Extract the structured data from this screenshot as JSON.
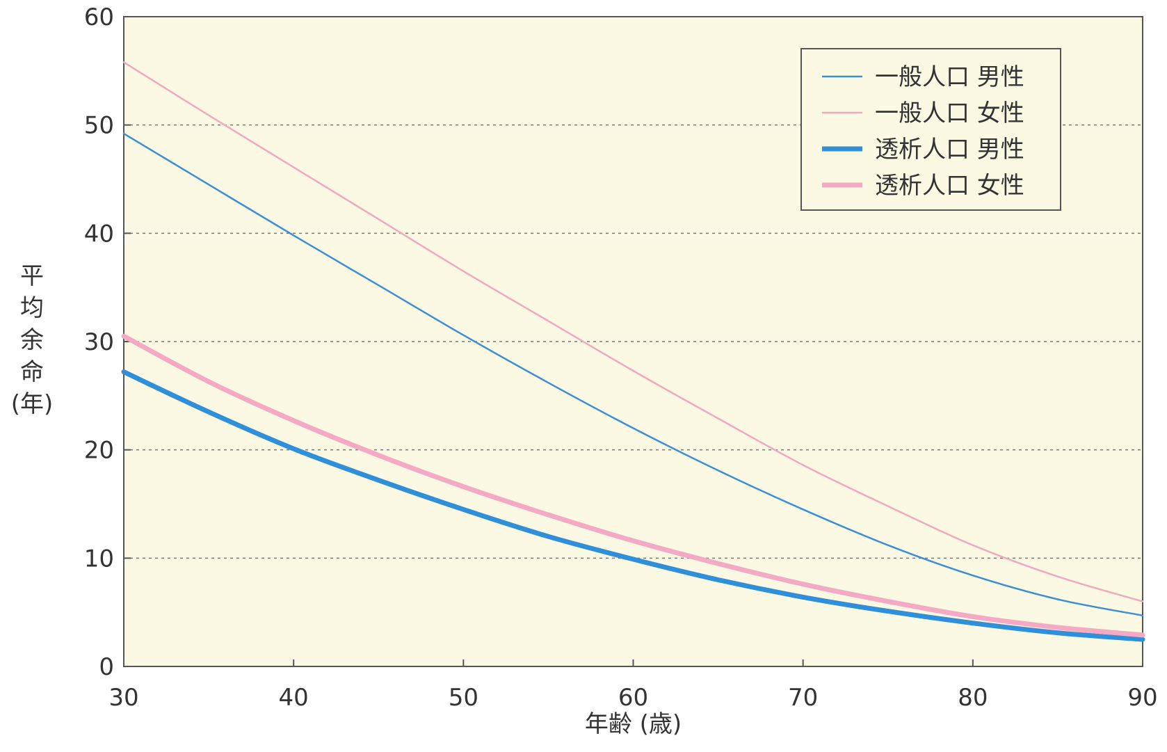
{
  "chart_data": {
    "type": "line",
    "xlabel": "年齢 (歳)",
    "ylabel_lines": [
      "平",
      "均",
      "余",
      "命",
      "(年)"
    ],
    "xlim": [
      30,
      90
    ],
    "ylim": [
      0,
      60
    ],
    "xticks": [
      30,
      40,
      50,
      60,
      70,
      80,
      90
    ],
    "yticks": [
      0,
      10,
      20,
      30,
      40,
      50,
      60
    ],
    "grid": "horizontal-dashed",
    "legend_position": "top-right",
    "plot_background": "#fbf9e4",
    "x": [
      30,
      35,
      40,
      45,
      50,
      55,
      60,
      65,
      70,
      75,
      80,
      85,
      90
    ],
    "series": [
      {
        "name": "一般人口 男性",
        "color": "#3a8fd6",
        "width": 2.5,
        "values": [
          49.2,
          44.5,
          39.8,
          35.2,
          30.6,
          26.2,
          22.0,
          18.1,
          14.5,
          11.2,
          8.4,
          6.2,
          4.7
        ]
      },
      {
        "name": "一般人口 女性",
        "color": "#f2a8bf",
        "width": 2.5,
        "values": [
          55.8,
          50.9,
          46.1,
          41.3,
          36.5,
          31.9,
          27.3,
          22.9,
          18.6,
          14.8,
          11.2,
          8.3,
          6.0
        ]
      },
      {
        "name": "透析人口 男性",
        "color": "#2f8fd8",
        "width": 7,
        "values": [
          27.2,
          23.5,
          20.1,
          17.2,
          14.5,
          12.0,
          9.9,
          8.0,
          6.4,
          5.1,
          4.0,
          3.1,
          2.5
        ]
      },
      {
        "name": "透析人口 女性",
        "color": "#f4a9c4",
        "width": 7,
        "values": [
          30.5,
          26.3,
          22.7,
          19.5,
          16.6,
          14.0,
          11.6,
          9.5,
          7.6,
          6.0,
          4.6,
          3.6,
          2.9
        ]
      }
    ]
  }
}
